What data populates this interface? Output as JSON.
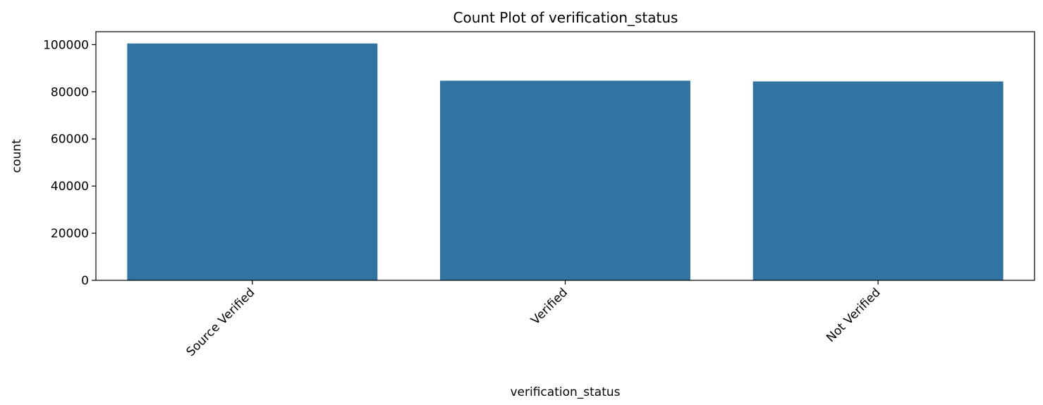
{
  "chart_data": {
    "type": "bar",
    "title": "Count Plot of verification_status",
    "xlabel": "verification_status",
    "ylabel": "count",
    "categories": [
      "Source Verified",
      "Verified",
      "Not Verified"
    ],
    "values": [
      100500,
      84700,
      84400
    ],
    "ylim": [
      0,
      105500
    ],
    "yticks": [
      0,
      20000,
      40000,
      60000,
      80000,
      100000
    ],
    "ytick_labels": [
      "0",
      "20000",
      "40000",
      "60000",
      "80000",
      "100000"
    ],
    "bar_color": "#3274a1",
    "grid": false,
    "legend": "none"
  }
}
